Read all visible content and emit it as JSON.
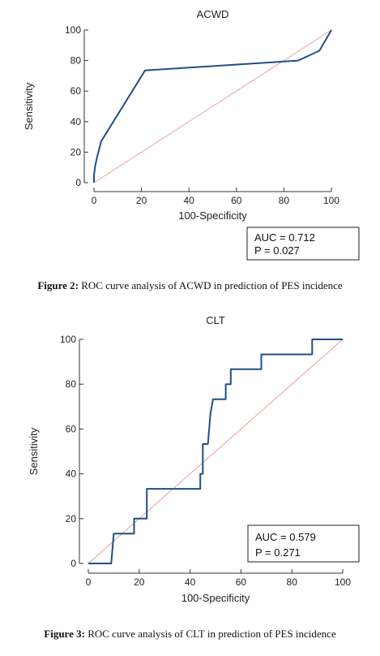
{
  "colors": {
    "curve": "#1f4e8c",
    "diagonal": "#e8a0a0",
    "axis": "#333333"
  },
  "chart_data": [
    {
      "type": "line",
      "title": "ACWD",
      "xlabel": "100-Specificity",
      "ylabel": "Sensitivity",
      "xlim": [
        0,
        100
      ],
      "ylim": [
        0,
        100
      ],
      "xticks": [
        "0",
        "20",
        "40",
        "60",
        "80",
        "100"
      ],
      "yticks": [
        "0",
        "20",
        "40",
        "60",
        "80",
        "100"
      ],
      "grid": false,
      "series": [
        {
          "x": [
            0,
            0,
            0.5,
            1.5,
            3,
            21.5,
            86,
            95,
            100
          ],
          "y": [
            0,
            5,
            11,
            18,
            27,
            73.5,
            80,
            86.5,
            100
          ]
        }
      ],
      "reference_line": {
        "x": [
          0,
          100
        ],
        "y": [
          0,
          100
        ]
      },
      "annotation": [
        "AUC = 0.712",
        "P = 0.027"
      ]
    },
    {
      "type": "line",
      "title": "CLT",
      "xlabel": "100-Specificity",
      "ylabel": "Sensitivity",
      "xlim": [
        0,
        100
      ],
      "ylim": [
        0,
        100
      ],
      "xticks": [
        "0",
        "20",
        "40",
        "60",
        "80",
        "100"
      ],
      "yticks": [
        "0",
        "20",
        "40",
        "60",
        "80",
        "100"
      ],
      "grid": false,
      "series": [
        {
          "x": [
            0,
            9,
            10,
            18,
            18,
            23,
            23,
            43,
            44,
            44,
            45,
            45,
            47,
            47,
            48,
            48,
            49,
            53,
            54,
            54,
            56,
            56,
            59,
            68,
            68,
            88,
            88,
            100
          ],
          "y": [
            0,
            0,
            13.3,
            13.3,
            20,
            20,
            33.3,
            33.3,
            33.3,
            40,
            40,
            53.3,
            53.3,
            53.3,
            66.7,
            66.7,
            73.3,
            73.3,
            73.3,
            80,
            80,
            86.7,
            86.7,
            86.7,
            93.3,
            93.3,
            100,
            100
          ]
        }
      ],
      "reference_line": {
        "x": [
          0,
          100
        ],
        "y": [
          0,
          100
        ]
      },
      "annotation": [
        "AUC = 0.579",
        "P = 0.271"
      ]
    }
  ],
  "captions": [
    {
      "label": "Figure 2:",
      "text": " ROC curve analysis of ACWD in prediction of PES incidence"
    },
    {
      "label": "Figure 3:",
      "text": " ROC curve analysis of CLT in prediction of PES incidence"
    }
  ]
}
